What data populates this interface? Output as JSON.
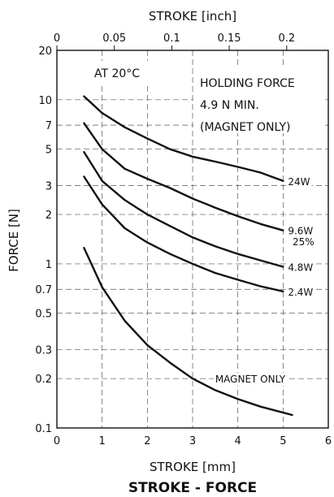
{
  "chart_data": {
    "type": "line",
    "title": "STROKE - FORCE",
    "xlabel": "STROKE [mm]",
    "x2label": "STROKE [inch]",
    "ylabel": "FORCE [N]",
    "xlim": [
      0,
      6
    ],
    "ylim": [
      0.1,
      20
    ],
    "y_scale": "log",
    "grid": true,
    "x_ticks": [
      "0",
      "1",
      "2",
      "3",
      "4",
      "5",
      "6"
    ],
    "x2_ticks": [
      "0",
      "0.05",
      "0.1",
      "0.15",
      "0.2"
    ],
    "y_ticks": [
      "0.1",
      "0.2",
      "0.3",
      "0.5",
      "0.7",
      "1",
      "2",
      "3",
      "5",
      "7",
      "10",
      "20"
    ],
    "annotations": {
      "temperature": "AT 20°C",
      "holding_line1": "HOLDING FORCE",
      "holding_line2": "4.9 N MIN.",
      "holding_line3": "(MAGNET ONLY)",
      "duty": "25%"
    },
    "series": [
      {
        "name": "24W",
        "x": [
          0.6,
          1.0,
          1.5,
          2.0,
          2.5,
          3.0,
          3.5,
          4.0,
          4.5,
          5.0
        ],
        "y": [
          10.5,
          8.3,
          6.8,
          5.8,
          5.0,
          4.5,
          4.2,
          3.9,
          3.6,
          3.2
        ]
      },
      {
        "name": "9.6W",
        "x": [
          0.6,
          1.0,
          1.5,
          2.0,
          2.5,
          3.0,
          3.5,
          4.0,
          4.5,
          5.0
        ],
        "y": [
          7.2,
          5.0,
          3.8,
          3.3,
          2.9,
          2.5,
          2.2,
          1.95,
          1.75,
          1.6
        ]
      },
      {
        "name": "4.8W",
        "x": [
          0.6,
          1.0,
          1.5,
          2.0,
          2.5,
          3.0,
          3.5,
          4.0,
          4.5,
          5.0
        ],
        "y": [
          4.8,
          3.2,
          2.45,
          2.0,
          1.7,
          1.45,
          1.28,
          1.15,
          1.05,
          0.96
        ]
      },
      {
        "name": "2.4W",
        "x": [
          0.6,
          1.0,
          1.5,
          2.0,
          2.5,
          3.0,
          3.5,
          4.0,
          4.5,
          5.0
        ],
        "y": [
          3.4,
          2.3,
          1.65,
          1.35,
          1.15,
          1.0,
          0.88,
          0.8,
          0.73,
          0.68
        ]
      },
      {
        "name": "MAGNET ONLY",
        "x": [
          0.6,
          1.0,
          1.5,
          2.0,
          2.5,
          3.0,
          3.5,
          4.0,
          4.5,
          5.2
        ],
        "y": [
          1.25,
          0.72,
          0.45,
          0.32,
          0.25,
          0.2,
          0.17,
          0.15,
          0.135,
          0.12
        ]
      }
    ]
  }
}
